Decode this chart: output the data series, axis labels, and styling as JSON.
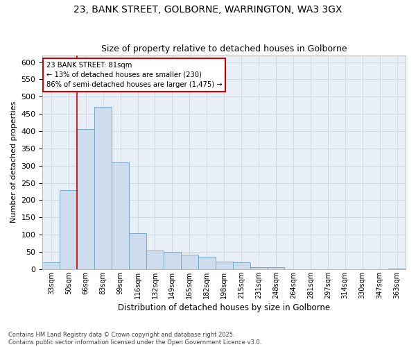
{
  "title_line1": "23, BANK STREET, GOLBORNE, WARRINGTON, WA3 3GX",
  "title_line2": "Size of property relative to detached houses in Golborne",
  "xlabel": "Distribution of detached houses by size in Golborne",
  "ylabel": "Number of detached properties",
  "bar_color": "#ccdcec",
  "bar_edge_color": "#7aaac8",
  "background_color": "#e8eef5",
  "grid_color": "#d0d8e0",
  "categories": [
    "33sqm",
    "50sqm",
    "66sqm",
    "83sqm",
    "99sqm",
    "116sqm",
    "132sqm",
    "149sqm",
    "165sqm",
    "182sqm",
    "198sqm",
    "215sqm",
    "231sqm",
    "248sqm",
    "264sqm",
    "281sqm",
    "297sqm",
    "314sqm",
    "330sqm",
    "347sqm",
    "363sqm"
  ],
  "values": [
    20,
    230,
    405,
    470,
    310,
    105,
    55,
    50,
    42,
    35,
    22,
    20,
    5,
    5,
    0,
    0,
    0,
    0,
    0,
    0,
    2
  ],
  "vline_pos": 1.5,
  "vline_color": "#cc0000",
  "annotation_text": "23 BANK STREET: 81sqm\n← 13% of detached houses are smaller (230)\n86% of semi-detached houses are larger (1,475) →",
  "annotation_box_color": "#cc0000",
  "ylim": [
    0,
    620
  ],
  "ytick_step": 50,
  "footer_text": "Contains HM Land Registry data © Crown copyright and database right 2025.\nContains public sector information licensed under the Open Government Licence v3.0.",
  "figsize": [
    6.0,
    5.0
  ],
  "dpi": 100
}
